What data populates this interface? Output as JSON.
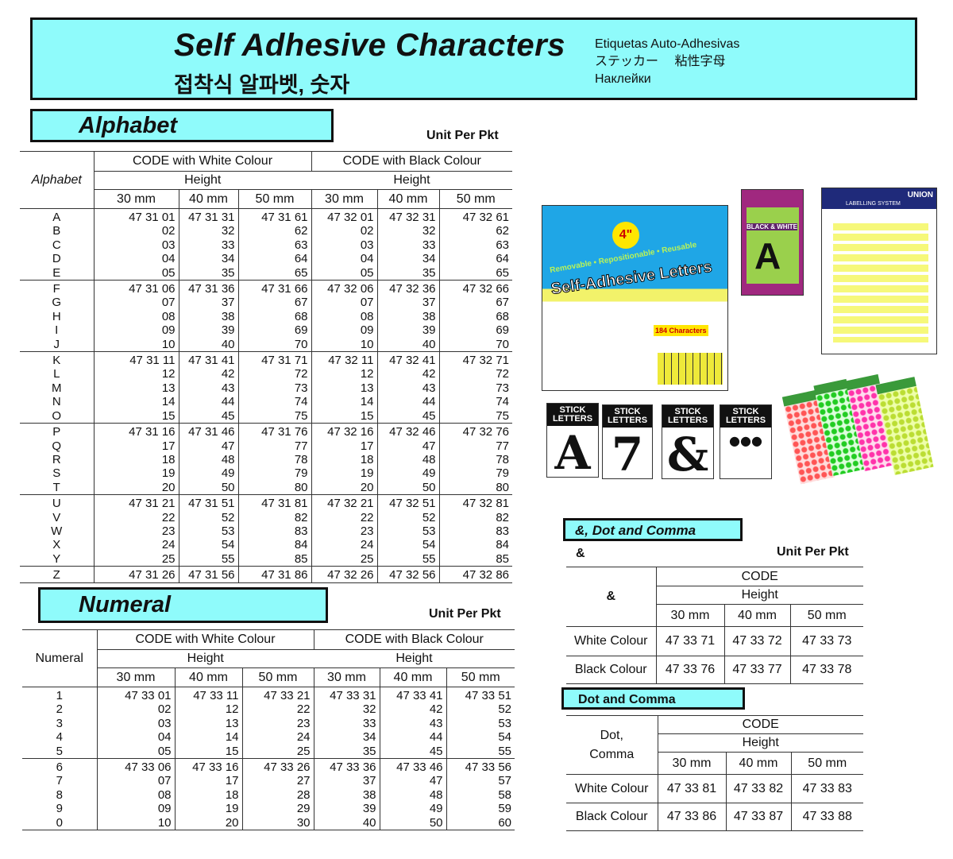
{
  "header": {
    "title": "Self Adhesive Characters",
    "subtitle_ko": "접착식 알파벳, 숫자",
    "lang_es": "Etiquetas Auto-Adhesivas",
    "lang_ja": "ステッカー　 粘性字母",
    "lang_ru": "Наклейки"
  },
  "alphabet": {
    "section_title": "Alphabet",
    "unit": "Unit Per Pkt",
    "row_header": "Alphabet",
    "white_header": "CODE with White Colour",
    "black_header": "CODE with Black Colour",
    "height": "Height",
    "sizes": [
      "30 mm",
      "40 mm",
      "50 mm",
      "30 mm",
      "40 mm",
      "50 mm"
    ],
    "groups": [
      {
        "labels": [
          "A",
          "B",
          "C",
          "D",
          "E"
        ],
        "codes": [
          [
            "47 31 01",
            "02",
            "03",
            "04",
            "05"
          ],
          [
            "47 31 31",
            "32",
            "33",
            "34",
            "35"
          ],
          [
            "47 31 61",
            "62",
            "63",
            "64",
            "65"
          ],
          [
            "47 32 01",
            "02",
            "03",
            "04",
            "05"
          ],
          [
            "47 32 31",
            "32",
            "33",
            "34",
            "35"
          ],
          [
            "47 32 61",
            "62",
            "63",
            "64",
            "65"
          ]
        ]
      },
      {
        "labels": [
          "F",
          "G",
          "H",
          "I",
          "J"
        ],
        "codes": [
          [
            "47 31 06",
            "07",
            "08",
            "09",
            "10"
          ],
          [
            "47 31 36",
            "37",
            "38",
            "39",
            "40"
          ],
          [
            "47 31 66",
            "67",
            "68",
            "69",
            "70"
          ],
          [
            "47 32 06",
            "07",
            "08",
            "09",
            "10"
          ],
          [
            "47 32 36",
            "37",
            "38",
            "39",
            "40"
          ],
          [
            "47 32 66",
            "67",
            "68",
            "69",
            "70"
          ]
        ]
      },
      {
        "labels": [
          "K",
          "L",
          "M",
          "N",
          "O"
        ],
        "codes": [
          [
            "47 31 11",
            "12",
            "13",
            "14",
            "15"
          ],
          [
            "47 31 41",
            "42",
            "43",
            "44",
            "45"
          ],
          [
            "47 31 71",
            "72",
            "73",
            "74",
            "75"
          ],
          [
            "47 32 11",
            "12",
            "13",
            "14",
            "15"
          ],
          [
            "47 32 41",
            "42",
            "43",
            "44",
            "45"
          ],
          [
            "47 32 71",
            "72",
            "73",
            "74",
            "75"
          ]
        ]
      },
      {
        "labels": [
          "P",
          "Q",
          "R",
          "S",
          "T"
        ],
        "codes": [
          [
            "47 31 16",
            "17",
            "18",
            "19",
            "20"
          ],
          [
            "47 31 46",
            "47",
            "48",
            "49",
            "50"
          ],
          [
            "47 31 76",
            "77",
            "78",
            "79",
            "80"
          ],
          [
            "47 32 16",
            "17",
            "18",
            "19",
            "20"
          ],
          [
            "47 32 46",
            "47",
            "48",
            "49",
            "50"
          ],
          [
            "47 32 76",
            "77",
            "78",
            "79",
            "80"
          ]
        ]
      },
      {
        "labels": [
          "U",
          "V",
          "W",
          "X",
          "Y"
        ],
        "codes": [
          [
            "47 31 21",
            "22",
            "23",
            "24",
            "25"
          ],
          [
            "47 31 51",
            "52",
            "53",
            "54",
            "55"
          ],
          [
            "47 31 81",
            "82",
            "83",
            "84",
            "85"
          ],
          [
            "47 32 21",
            "22",
            "23",
            "24",
            "25"
          ],
          [
            "47 32 51",
            "52",
            "53",
            "54",
            "55"
          ],
          [
            "47 32 81",
            "82",
            "83",
            "84",
            "85"
          ]
        ]
      },
      {
        "labels": [
          "Z"
        ],
        "codes": [
          [
            "47 31 26"
          ],
          [
            "47 31 56"
          ],
          [
            "47 31 86"
          ],
          [
            "47 32 26"
          ],
          [
            "47 32 56"
          ],
          [
            "47 32 86"
          ]
        ]
      }
    ]
  },
  "numeral": {
    "section_title": "Numeral",
    "unit": "Unit Per Pkt",
    "row_header": "Numeral",
    "white_header": "CODE with  White Colour",
    "black_header": "CODE with Black Colour",
    "height": "Height",
    "sizes": [
      "30 mm",
      "40 mm",
      "50 mm",
      "30 mm",
      "40 mm",
      "50 mm"
    ],
    "groups": [
      {
        "labels": [
          "1",
          "2",
          "3",
          "4",
          "5"
        ],
        "codes": [
          [
            "47 33 01",
            "02",
            "03",
            "04",
            "05"
          ],
          [
            "47 33 11",
            "12",
            "13",
            "14",
            "15"
          ],
          [
            "47 33 21",
            "22",
            "23",
            "24",
            "25"
          ],
          [
            "47 33 31",
            "32",
            "33",
            "34",
            "35"
          ],
          [
            "47 33 41",
            "42",
            "43",
            "44",
            "45"
          ],
          [
            "47 33 51",
            "52",
            "53",
            "54",
            "55"
          ]
        ]
      },
      {
        "labels": [
          "6",
          "7",
          "8",
          "9",
          "0"
        ],
        "codes": [
          [
            "47 33 06",
            "07",
            "08",
            "09",
            "10"
          ],
          [
            "47 33 16",
            "17",
            "18",
            "19",
            "20"
          ],
          [
            "47 33 26",
            "27",
            "28",
            "29",
            "30"
          ],
          [
            "47 33 36",
            "37",
            "38",
            "39",
            "40"
          ],
          [
            "47 33 46",
            "47",
            "48",
            "49",
            "50"
          ],
          [
            "47 33 56",
            "57",
            "58",
            "59",
            "60"
          ]
        ]
      }
    ]
  },
  "ampersand": {
    "section_title": "&, Dot and Comma",
    "symbol": "&",
    "unit": "Unit Per Pkt",
    "row_header": "&",
    "code": "CODE",
    "height": "Height",
    "sizes": [
      "30 mm",
      "40 mm",
      "50 mm"
    ],
    "rows": [
      {
        "label": "White Colour",
        "codes": [
          "47 33 71",
          "47 33 72",
          "47 33 73"
        ]
      },
      {
        "label": "Black Colour",
        "codes": [
          "47 33 76",
          "47 33 77",
          "47 33 78"
        ]
      }
    ]
  },
  "dotcomma": {
    "section_title": "Dot and Comma",
    "row_header_1": "Dot,",
    "row_header_2": "Comma",
    "code": "CODE",
    "height": "Height",
    "sizes": [
      "30 mm",
      "40 mm",
      "50 mm"
    ],
    "rows": [
      {
        "label": "White Colour",
        "codes": [
          "47 33 81",
          "47 33 82",
          "47 33 83"
        ]
      },
      {
        "label": "Black Colour",
        "codes": [
          "47 33 86",
          "47 33 87",
          "47 33 88"
        ]
      }
    ]
  },
  "products": {
    "package_text": "Self-Adhesive Letters",
    "package_size": "4\"",
    "package_sub": "Removable • Repositionable • Reusable",
    "package_count": "184 Characters",
    "pack2_letter": "A",
    "pack2_text": "BLACK & WHITE",
    "union_brand": "UNION",
    "union_sub": "LABELLING SYSTEM",
    "cards": [
      {
        "header": "STICK LETTERS",
        "glyph": "A"
      },
      {
        "header": "STICK LETTERS",
        "glyph": "7"
      },
      {
        "header": "STICK LETTERS",
        "glyph": "&"
      },
      {
        "header": "STICK LETTERS",
        "glyph": "●●●"
      }
    ]
  },
  "colors": {
    "accent": "#8ffbfb"
  }
}
